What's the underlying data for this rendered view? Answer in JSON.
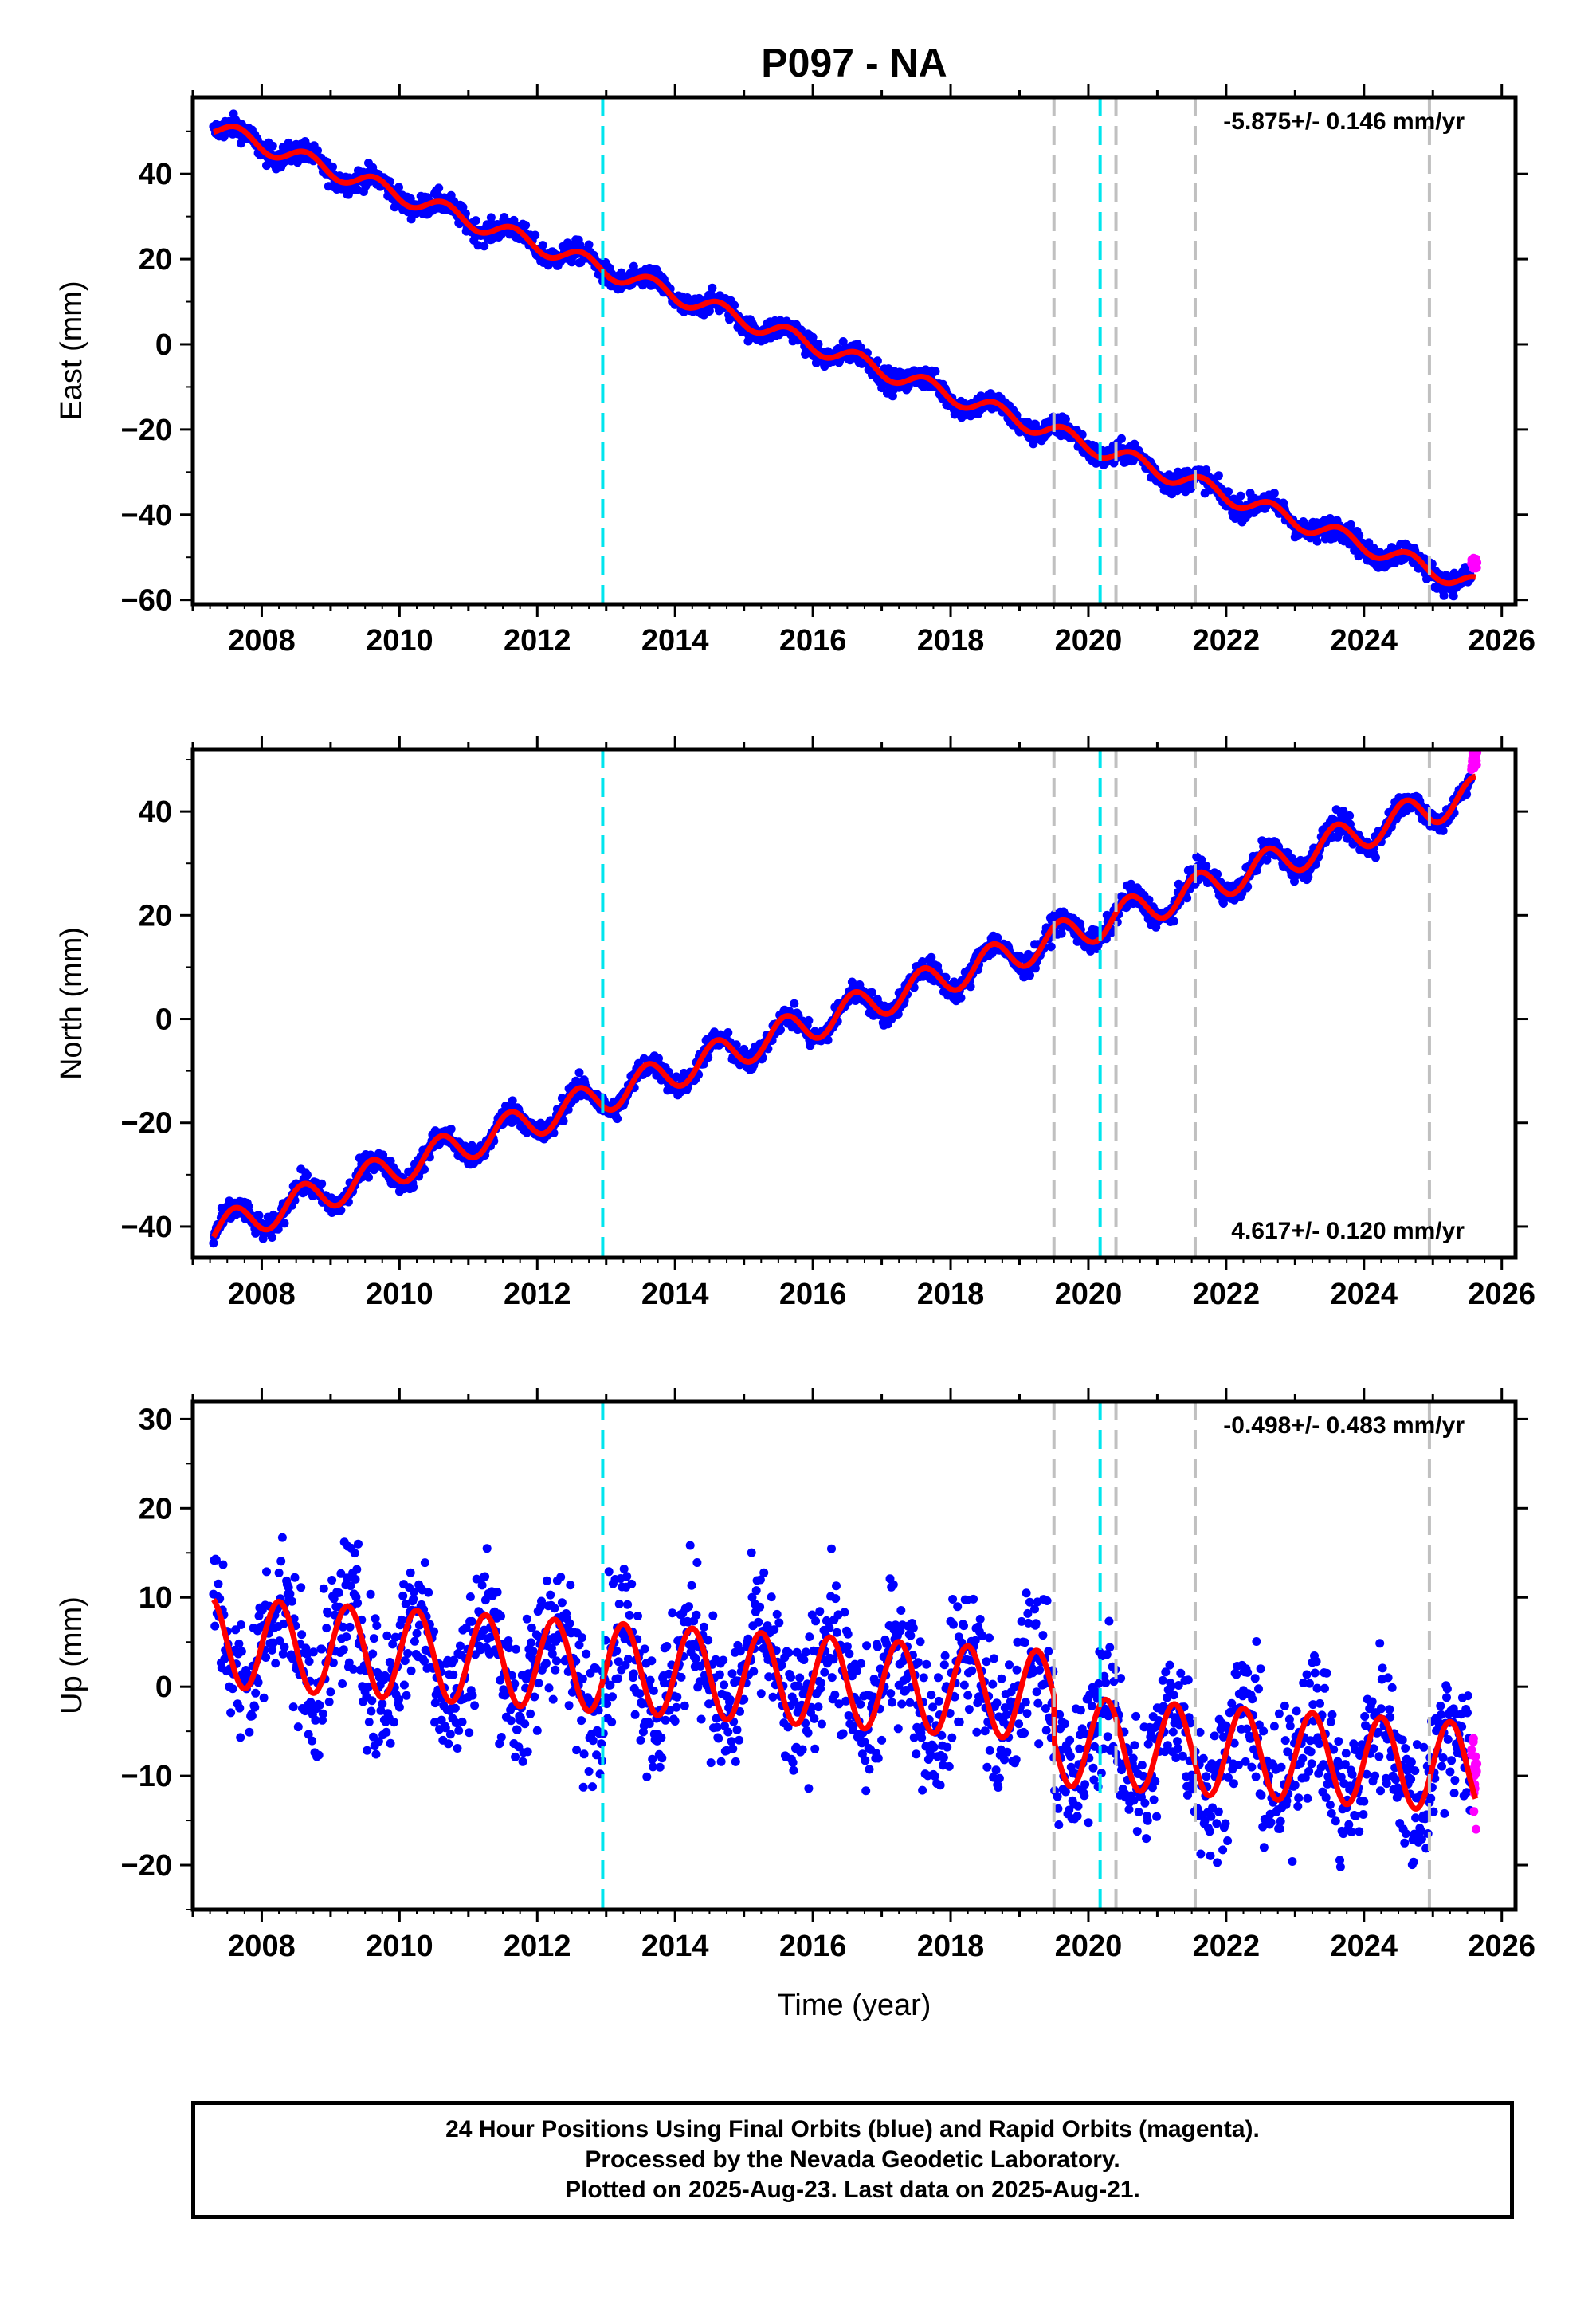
{
  "chart_data": {
    "type": "scatter",
    "title": "P097 - NA",
    "xlabel": "Time (year)",
    "x_tick_labels": [
      "2008",
      "2010",
      "2012",
      "2014",
      "2016",
      "2018",
      "2020",
      "2022",
      "2024",
      "2026"
    ],
    "xlim": [
      2007.0,
      2026.2
    ],
    "event_lines": {
      "cyan": [
        2012.95,
        2020.17
      ],
      "gray": [
        2019.5,
        2020.4,
        2021.55,
        2024.95
      ]
    },
    "colors": {
      "final_orbits": "#0000ff",
      "rapid_orbits": "#ff00ff",
      "model_fit": "#ff0000",
      "cyan_lines": "#00e5ee",
      "gray_lines": "#c0c0c0"
    },
    "panels": [
      {
        "component": "East",
        "ylabel": "East (mm)",
        "rate": "-5.875+/- 0.146 mm/yr",
        "rate_position": "top-right",
        "ylim": [
          -61,
          58
        ],
        "y_ticks": [
          40,
          20,
          0,
          -20,
          -40,
          -60
        ],
        "model": {
          "start_year": 2007.3,
          "start_value": 51,
          "slope": -5.875,
          "annual_amplitude": 2.0,
          "annual_phase": 0.4,
          "noise": 1.3
        },
        "series_points": [
          [
            2007.3,
            51
          ],
          [
            2008.0,
            48
          ],
          [
            2009.0,
            42
          ],
          [
            2010.0,
            37
          ],
          [
            2011.0,
            31
          ],
          [
            2012.0,
            26
          ],
          [
            2013.0,
            20
          ],
          [
            2014.0,
            14
          ],
          [
            2015.0,
            9
          ],
          [
            2016.0,
            3
          ],
          [
            2017.0,
            -3
          ],
          [
            2018.0,
            -9
          ],
          [
            2019.0,
            -14
          ],
          [
            2020.0,
            -20
          ],
          [
            2021.0,
            -26
          ],
          [
            2022.0,
            -32
          ],
          [
            2023.0,
            -38
          ],
          [
            2024.0,
            -44
          ],
          [
            2025.0,
            -50
          ],
          [
            2025.6,
            -55
          ]
        ],
        "rapid_points": [
          [
            2025.55,
            -55
          ],
          [
            2025.6,
            -52
          ],
          [
            2025.65,
            -54
          ]
        ]
      },
      {
        "component": "North",
        "ylabel": "North (mm)",
        "rate": "4.617+/- 0.120 mm/yr",
        "rate_position": "bottom-right",
        "ylim": [
          -46,
          52
        ],
        "y_ticks": [
          40,
          20,
          0,
          -20,
          -40
        ],
        "model": {
          "start_year": 2007.3,
          "start_value": -41,
          "slope": 4.617,
          "annual_amplitude": 3.2,
          "annual_phase": 0.35,
          "noise": 1.1
        },
        "series_points": [
          [
            2007.3,
            -41
          ],
          [
            2008.0,
            -38
          ],
          [
            2009.0,
            -34
          ],
          [
            2010.0,
            -29
          ],
          [
            2011.0,
            -24
          ],
          [
            2012.0,
            -20
          ],
          [
            2013.0,
            -15
          ],
          [
            2014.0,
            -11
          ],
          [
            2015.0,
            -6
          ],
          [
            2016.0,
            -2
          ],
          [
            2017.0,
            3
          ],
          [
            2018.0,
            8
          ],
          [
            2019.0,
            12
          ],
          [
            2020.0,
            17
          ],
          [
            2021.0,
            22
          ],
          [
            2022.0,
            26
          ],
          [
            2023.0,
            31
          ],
          [
            2024.0,
            36
          ],
          [
            2025.0,
            40
          ],
          [
            2025.6,
            45
          ]
        ],
        "rapid_points": [
          [
            2025.55,
            46
          ],
          [
            2025.6,
            48
          ],
          [
            2025.65,
            47
          ]
        ]
      },
      {
        "component": "Up",
        "ylabel": "Up (mm)",
        "rate": "-0.498+/- 0.483 mm/yr",
        "rate_position": "top-right",
        "ylim": [
          -25,
          32
        ],
        "y_ticks": [
          30,
          20,
          10,
          0,
          -10,
          -20
        ],
        "model": {
          "start_year": 2007.3,
          "start_value": 5,
          "slope": -0.498,
          "annual_amplitude": 5.0,
          "annual_phase": 0.0,
          "noise": 4.0,
          "offset_at": 2019.5,
          "offset": -5
        },
        "series_points": [
          [
            2007.3,
            5
          ],
          [
            2008.0,
            6
          ],
          [
            2009.0,
            5
          ],
          [
            2010.0,
            5
          ],
          [
            2011.0,
            4
          ],
          [
            2012.0,
            4
          ],
          [
            2013.0,
            3
          ],
          [
            2014.0,
            2
          ],
          [
            2015.0,
            2
          ],
          [
            2016.0,
            1
          ],
          [
            2017.0,
            1
          ],
          [
            2018.0,
            0
          ],
          [
            2019.0,
            0
          ],
          [
            2020.0,
            -6
          ],
          [
            2021.0,
            -6
          ],
          [
            2022.0,
            -6
          ],
          [
            2023.0,
            -6
          ],
          [
            2024.0,
            -7
          ],
          [
            2025.0,
            -7
          ],
          [
            2025.6,
            -7
          ]
        ],
        "rapid_points": [
          [
            2025.55,
            0
          ],
          [
            2025.6,
            4
          ],
          [
            2025.65,
            2
          ]
        ]
      }
    ]
  },
  "footer": {
    "line1": "24 Hour Positions Using Final Orbits (blue) and Rapid Orbits (magenta).",
    "line2": "Processed by the Nevada Geodetic Laboratory.",
    "line3": "Plotted on 2025-Aug-23. Last data on 2025-Aug-21."
  }
}
